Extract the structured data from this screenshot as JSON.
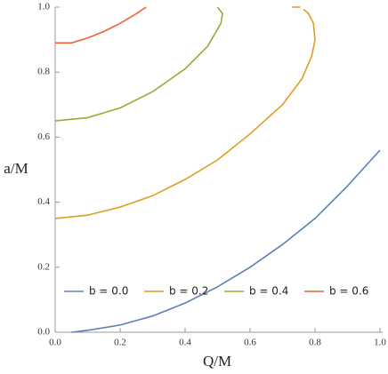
{
  "chart_data": {
    "type": "line",
    "xlabel": "Q/M",
    "ylabel": "a/M",
    "xlim": [
      0,
      1
    ],
    "ylim": [
      0,
      1
    ],
    "xticks": [
      {
        "value": 0,
        "label": "0.0"
      },
      {
        "value": 0.2,
        "label": "0.2"
      },
      {
        "value": 0.4,
        "label": "0.4"
      },
      {
        "value": 0.6,
        "label": "0.6"
      },
      {
        "value": 0.8,
        "label": "0.8"
      },
      {
        "value": 1,
        "label": "1.0"
      }
    ],
    "yticks": [
      {
        "value": 0,
        "label": "0.0"
      },
      {
        "value": 0.2,
        "label": "0.2"
      },
      {
        "value": 0.4,
        "label": "0.4"
      },
      {
        "value": 0.6,
        "label": "0.6"
      },
      {
        "value": 0.8,
        "label": "0.8"
      },
      {
        "value": 1,
        "label": "1.0"
      }
    ],
    "series": [
      {
        "name": "b = 0.0",
        "color": "#5e81b5",
        "x": [
          0.05,
          0.1,
          0.2,
          0.3,
          0.4,
          0.5,
          0.6,
          0.7,
          0.8,
          0.9,
          1.0
        ],
        "values": [
          0,
          0.006,
          0.022,
          0.05,
          0.09,
          0.14,
          0.2,
          0.27,
          0.35,
          0.45,
          0.56
        ]
      },
      {
        "name": "b = 0.2",
        "color": "#e19c24",
        "x": [
          0,
          0.1,
          0.2,
          0.3,
          0.4,
          0.5,
          0.6,
          0.7,
          0.76,
          0.79,
          0.8,
          0.795,
          0.78,
          0.765,
          null,
          0.755,
          0.73
        ],
        "values": [
          0.35,
          0.36,
          0.385,
          0.42,
          0.47,
          0.53,
          0.61,
          0.7,
          0.78,
          0.85,
          0.9,
          0.95,
          0.98,
          0.993,
          null,
          1.0,
          1.0
        ]
      },
      {
        "name": "b = 0.4",
        "color": "#8fb032",
        "x": [
          0,
          0.1,
          0.2,
          0.3,
          0.4,
          0.47,
          0.51,
          0.515,
          0.5
        ],
        "values": [
          0.65,
          0.66,
          0.69,
          0.74,
          0.81,
          0.88,
          0.95,
          0.98,
          1.0
        ]
      },
      {
        "name": "b = 0.6",
        "color": "#eb6235",
        "x": [
          0,
          0.05,
          0.1,
          0.15,
          0.2,
          0.25,
          0.28
        ],
        "values": [
          0.89,
          0.89,
          0.905,
          0.925,
          0.95,
          0.98,
          1.0
        ]
      }
    ]
  }
}
